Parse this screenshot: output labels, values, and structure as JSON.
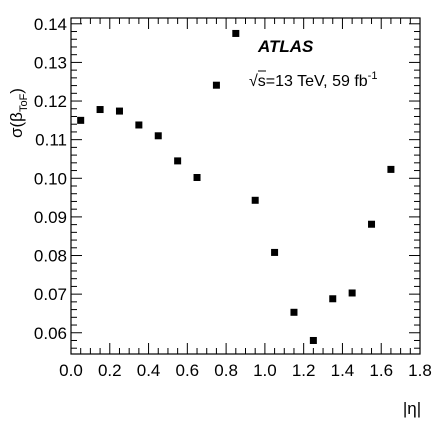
{
  "chart_data": {
    "type": "scatter",
    "xlabel": "|η|",
    "ylabel": "σ(β",
    "ylabel_sub": "ToF",
    "ylabel_close": ")",
    "xlim": [
      0.0,
      1.8
    ],
    "ylim": [
      0.0545,
      0.1415
    ],
    "xticks": [
      "0.0",
      "0.2",
      "0.4",
      "0.6",
      "0.8",
      "1.0",
      "1.2",
      "1.4",
      "1.6",
      "1.8"
    ],
    "yticks": [
      "0.06",
      "0.07",
      "0.08",
      "0.09",
      "0.10",
      "0.11",
      "0.12",
      "0.13",
      "0.14"
    ],
    "grid": false,
    "series": [
      {
        "x": [
          0.05,
          0.15,
          0.25,
          0.35,
          0.45,
          0.55,
          0.65,
          0.75,
          0.85,
          0.95,
          1.05,
          1.15,
          1.25,
          1.35,
          1.45,
          1.55,
          1.65
        ],
        "y": [
          0.115,
          0.1178,
          0.1174,
          0.1138,
          0.111,
          0.1045,
          0.1002,
          0.1241,
          0.1375,
          0.0943,
          0.0808,
          0.0653,
          0.058,
          0.0688,
          0.0703,
          0.0881,
          0.1023
        ]
      }
    ],
    "annotations": {
      "experiment": "ATLAS",
      "sqrt": "√",
      "energy": "s=13 TeV, 59 fb",
      "energy_sup": "-1"
    }
  }
}
